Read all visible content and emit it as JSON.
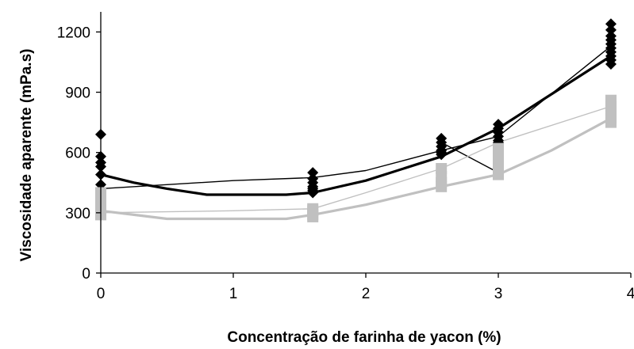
{
  "chart_data": {
    "type": "line",
    "title": "",
    "xlabel": "Concentração de farinha de yacon (%)",
    "ylabel": "Viscosidade aparente (mPa.s)",
    "xlim": [
      0,
      4
    ],
    "ylim": [
      0,
      1300
    ],
    "xticks": [
      "0",
      "1",
      "2",
      "3",
      "4"
    ],
    "yticks": [
      "0",
      "300",
      "600",
      "900",
      "1200"
    ],
    "xtick_values": [
      0,
      1,
      2,
      3,
      4
    ],
    "ytick_values": [
      0,
      300,
      600,
      900,
      1200
    ],
    "grid": false,
    "legend": "none",
    "series": [
      {
        "color": "#000000",
        "style": "thin",
        "x": [
          0,
          0.5,
          1,
          1.6,
          2,
          2.57,
          3,
          3.85
        ],
        "y": [
          420,
          440,
          460,
          475,
          510,
          610,
          680,
          1130
        ]
      },
      {
        "color": "#000000",
        "style": "thick",
        "x": [
          0,
          0.25,
          0.5,
          0.8,
          1,
          1.2,
          1.4,
          1.6,
          2,
          2.57,
          3,
          3.4,
          3.85
        ],
        "y": [
          490,
          450,
          420,
          390,
          390,
          390,
          390,
          400,
          460,
          580,
          720,
          890,
          1080
        ]
      },
      {
        "color": "#000000",
        "style": "thin",
        "x": [
          2.57,
          3
        ],
        "y": [
          650,
          500
        ]
      },
      {
        "color": "#c0c0c0",
        "style": "thin",
        "x": [
          0,
          0.5,
          1,
          1.6,
          2,
          2.57,
          3,
          3.85
        ],
        "y": [
          300,
          305,
          310,
          320,
          400,
          520,
          650,
          830
        ]
      },
      {
        "color": "#c0c0c0",
        "style": "thick",
        "x": [
          0,
          0.25,
          0.5,
          0.8,
          1,
          1.4,
          1.6,
          2,
          2.57,
          3,
          3.4,
          3.85
        ],
        "y": [
          310,
          290,
          270,
          270,
          270,
          270,
          290,
          340,
          430,
          490,
          610,
          770
        ]
      }
    ],
    "markers": [
      {
        "shape": "diamond",
        "color": "#000000",
        "x": [
          0,
          0,
          0,
          0,
          0,
          0,
          1.6,
          1.6,
          1.6,
          1.6,
          1.6,
          1.6,
          1.6,
          2.57,
          2.57,
          2.57,
          2.57,
          2.57,
          2.57,
          3,
          3,
          3,
          3,
          3,
          3,
          3.85,
          3.85,
          3.85,
          3.85,
          3.85,
          3.85,
          3.85,
          3.85,
          3.85,
          3.85
        ],
        "y": [
          690,
          580,
          550,
          530,
          490,
          440,
          500,
          470,
          450,
          430,
          420,
          410,
          400,
          670,
          650,
          630,
          610,
          600,
          590,
          740,
          720,
          700,
          680,
          660,
          650,
          1240,
          1210,
          1180,
          1160,
          1140,
          1120,
          1100,
          1080,
          1060,
          1040
        ]
      },
      {
        "shape": "square",
        "color": "#c0c0c0",
        "x": [
          0,
          0,
          0,
          0,
          0,
          1.6,
          1.6,
          1.6,
          1.6,
          2.57,
          2.57,
          2.57,
          2.57,
          3,
          3,
          3,
          3,
          3,
          3.85,
          3.85,
          3.85,
          3.85,
          3.85,
          3.85
        ],
        "y": [
          400,
          370,
          340,
          310,
          290,
          320,
          310,
          290,
          280,
          520,
          480,
          450,
          430,
          620,
          580,
          550,
          520,
          490,
          860,
          830,
          810,
          790,
          770,
          750
        ]
      }
    ]
  }
}
